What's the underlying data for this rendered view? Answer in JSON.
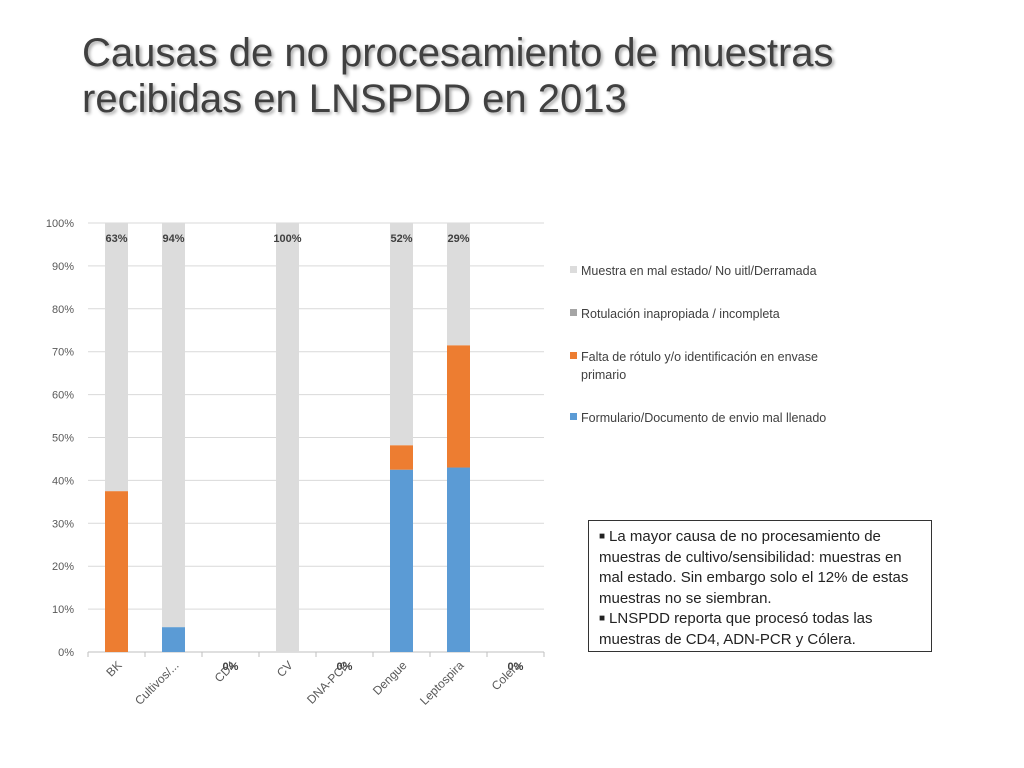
{
  "title": {
    "line1": "Causas de no procesamiento de muestras",
    "line2": "recibidas en LNSPDD en 2013"
  },
  "chart_data": {
    "type": "bar",
    "stacked": true,
    "categories": [
      "BK",
      "Cultivos/...",
      "CD4",
      "CV",
      "DNA-PCR",
      "Dengue",
      "Leptospira",
      "Colera"
    ],
    "series": [
      {
        "name": "Formulario/Documento de envio mal llenado",
        "color": "#5b9bd5",
        "values": [
          0,
          5.8,
          0,
          0,
          0,
          42.5,
          43,
          0
        ]
      },
      {
        "name": "Falta de rótulo y/o identificación en envase primario",
        "color": "#ed7d31",
        "values": [
          37.5,
          0,
          0,
          0,
          0,
          5.7,
          28.5,
          0
        ]
      },
      {
        "name": "Rotulación inapropiada / incompleta",
        "color": "#a5a5a5",
        "values": [
          0,
          0,
          0,
          0,
          0,
          0,
          0,
          0
        ]
      },
      {
        "name": "Muestra en mal estado/ No uitl/Derramada",
        "color": "#dcdcdc",
        "values": [
          62.5,
          94.2,
          0,
          100,
          0,
          51.8,
          28.5,
          0
        ]
      }
    ],
    "data_labels": [
      "63%",
      "94%",
      "0%",
      "100%",
      "0%",
      "52%",
      "29%",
      "0%"
    ],
    "y_ticks": [
      "0%",
      "10%",
      "20%",
      "30%",
      "40%",
      "50%",
      "60%",
      "70%",
      "80%",
      "90%",
      "100%"
    ],
    "ylim": [
      0,
      100
    ],
    "grid": true,
    "legend_position": "right",
    "xlabel": "",
    "ylabel": ""
  },
  "legend": [
    {
      "label": "Muestra en mal estado/ No uitl/Derramada",
      "color": "#dcdcdc"
    },
    {
      "label": "Rotulación inapropiada / incompleta",
      "color": "#a5a5a5"
    },
    {
      "label": "Falta de rótulo y/o identificación en envase primario",
      "color": "#ed7d31"
    },
    {
      "label": "Formulario/Documento de envio mal llenado",
      "color": "#5b9bd5"
    }
  ],
  "note": {
    "bullet1": "La mayor causa de no procesamiento de muestras de cultivo/sensibilidad: muestras en mal estado. Sin embargo solo el 12% de estas muestras no se siembran.",
    "bullet2": "LNSPDD reporta que procesó todas las muestras de CD4, ADN-PCR y Cólera."
  }
}
